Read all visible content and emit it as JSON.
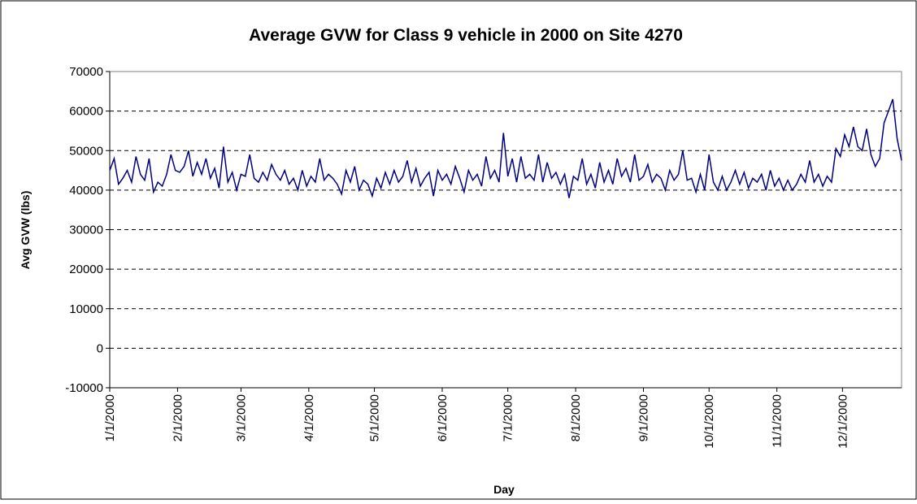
{
  "chart_data": {
    "type": "line",
    "title": "Average GVW for Class 9 vehicle in 2000 on Site 4270",
    "xlabel": "Day",
    "ylabel": "Avg GVW (lbs)",
    "xlim": [
      0,
      362
    ],
    "xticks": [
      {
        "value": 0,
        "label": "1/1/2000"
      },
      {
        "value": 31,
        "label": "2/1/2000"
      },
      {
        "value": 60,
        "label": "3/1/2000"
      },
      {
        "value": 91,
        "label": "4/1/2000"
      },
      {
        "value": 121,
        "label": "5/1/2000"
      },
      {
        "value": 152,
        "label": "6/1/2000"
      },
      {
        "value": 182,
        "label": "7/1/2000"
      },
      {
        "value": 213,
        "label": "8/1/2000"
      },
      {
        "value": 244,
        "label": "9/1/2000"
      },
      {
        "value": 274,
        "label": "10/1/2000"
      },
      {
        "value": 305,
        "label": "11/1/2000"
      },
      {
        "value": 335,
        "label": "12/1/2000"
      }
    ],
    "ylim": [
      -10000,
      70000
    ],
    "yticks": [
      -10000,
      0,
      10000,
      20000,
      30000,
      40000,
      50000,
      60000,
      70000
    ],
    "grid": true,
    "x": [
      0,
      2,
      4,
      6,
      8,
      10,
      12,
      14,
      16,
      18,
      20,
      22,
      24,
      26,
      28,
      30,
      32,
      34,
      36,
      38,
      40,
      42,
      44,
      46,
      48,
      50,
      52,
      54,
      56,
      58,
      60,
      62,
      64,
      66,
      68,
      70,
      72,
      74,
      76,
      78,
      80,
      82,
      84,
      86,
      88,
      90,
      92,
      94,
      96,
      98,
      100,
      102,
      104,
      106,
      108,
      110,
      112,
      114,
      116,
      118,
      120,
      122,
      124,
      126,
      128,
      130,
      132,
      134,
      136,
      138,
      140,
      142,
      144,
      146,
      148,
      150,
      152,
      154,
      156,
      158,
      160,
      162,
      164,
      166,
      168,
      170,
      172,
      174,
      176,
      178,
      180,
      182,
      184,
      186,
      188,
      190,
      192,
      194,
      196,
      198,
      200,
      202,
      204,
      206,
      208,
      210,
      212,
      214,
      216,
      218,
      220,
      222,
      224,
      226,
      228,
      230,
      232,
      234,
      236,
      238,
      240,
      242,
      244,
      246,
      248,
      250,
      252,
      254,
      256,
      258,
      260,
      262,
      264,
      266,
      268,
      270,
      272,
      274,
      276,
      278,
      280,
      282,
      284,
      286,
      288,
      290,
      292,
      294,
      296,
      298,
      300,
      302,
      304,
      306,
      308,
      310,
      312,
      314,
      316,
      318,
      320,
      322,
      324,
      326,
      328,
      330,
      332,
      334,
      336,
      338,
      340,
      342,
      344,
      346,
      348,
      350,
      352,
      354,
      356,
      358,
      360,
      362
    ],
    "series": [
      {
        "color": "#000080",
        "values": [
          45000,
          48000,
          41500,
          43000,
          45000,
          42000,
          48500,
          44000,
          42500,
          48000,
          39500,
          42000,
          41000,
          44000,
          49000,
          45000,
          44500,
          46000,
          50000,
          43500,
          47000,
          44000,
          48000,
          43000,
          45500,
          40500,
          51000,
          42000,
          44500,
          40000,
          44000,
          43500,
          49000,
          43000,
          42000,
          44500,
          42500,
          46500,
          44000,
          42500,
          45000,
          41500,
          43000,
          40000,
          45000,
          41000,
          43500,
          42000,
          48000,
          42500,
          44000,
          43000,
          41500,
          39000,
          45000,
          42000,
          46000,
          40000,
          42500,
          41500,
          38500,
          43000,
          40500,
          44500,
          41500,
          45000,
          42000,
          43500,
          47500,
          42000,
          45500,
          41000,
          43000,
          44500,
          38500,
          45000,
          42500,
          44000,
          41500,
          46000,
          43000,
          39500,
          45000,
          42500,
          44000,
          41000,
          48500,
          43000,
          45000,
          42000,
          54500,
          43500,
          48000,
          42000,
          48500,
          43000,
          44000,
          42500,
          49000,
          42000,
          47000,
          43000,
          44500,
          41500,
          44000,
          38000,
          43500,
          42500,
          48000,
          41500,
          44000,
          40500,
          47000,
          42000,
          45000,
          41500,
          48000,
          43500,
          45500,
          42000,
          49000,
          42500,
          43500,
          46500,
          42000,
          44000,
          43000,
          40000,
          45000,
          42500,
          44000,
          50000,
          42500,
          43000,
          39500,
          44000,
          40000,
          49000,
          42000,
          40000,
          43500,
          40000,
          42000,
          45000,
          41500,
          44500,
          40500,
          43000,
          42000,
          44000,
          40000,
          45000,
          41000,
          43000,
          40000,
          42500,
          40000,
          41500,
          44000,
          42000,
          47500,
          42000,
          44000,
          41000,
          43500,
          42000,
          50500,
          48500,
          54000,
          51000,
          56000,
          51000,
          50000,
          55500,
          49000,
          46000,
          48000,
          57000,
          60000,
          63000,
          53000,
          47500
        ]
      }
    ]
  }
}
